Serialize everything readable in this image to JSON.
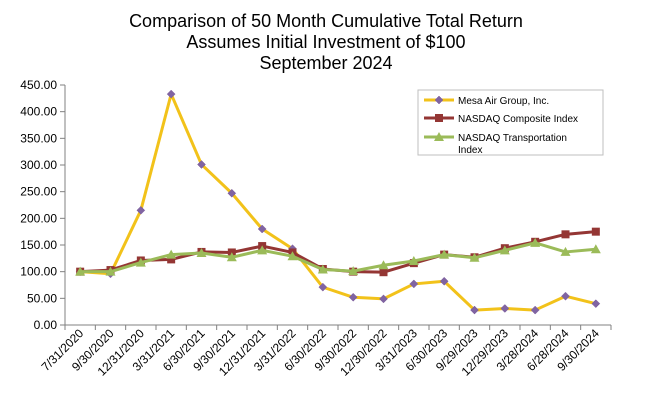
{
  "chart_data": {
    "type": "line",
    "title": [
      "Comparison of 50 Month Cumulative Total Return",
      "Assumes Initial Investment of $100",
      "September 2024"
    ],
    "xlabel": "",
    "ylabel": "",
    "ylim": [
      0,
      450
    ],
    "yticks": [
      "0.00",
      "50.00",
      "100.00",
      "150.00",
      "200.00",
      "250.00",
      "300.00",
      "350.00",
      "400.00",
      "450.00"
    ],
    "categories": [
      "7/31/2020",
      "9/30/2020",
      "12/31/2020",
      "3/31/2021",
      "6/30/2021",
      "9/30/2021",
      "12/31/2021",
      "3/31/2022",
      "6/30/2022",
      "9/30/2022",
      "12/30/2022",
      "3/31/2023",
      "6/30/2023",
      "9/29/2023",
      "12/29/2023",
      "3/28/2024",
      "6/28/2024",
      "9/30/2024"
    ],
    "grid": false,
    "legend_position": "top-right",
    "series": [
      {
        "name": "Mesa Air Group, Inc.",
        "color": "#F2C21A",
        "marker": "diamond",
        "values": [
          100,
          96,
          215,
          433,
          301,
          247,
          180,
          143,
          71,
          52,
          49,
          77,
          82,
          28,
          31,
          28,
          54,
          40
        ]
      },
      {
        "name": "NASDAQ Composite Index",
        "color": "#943634",
        "marker": "square",
        "values": [
          100,
          103,
          121,
          123,
          137,
          136,
          148,
          136,
          105,
          100,
          99,
          116,
          132,
          127,
          144,
          156,
          170,
          175
        ]
      },
      {
        "name": "NASDAQ Transportation Index",
        "color": "#9BBB59",
        "marker": "triangle",
        "values": [
          100,
          100,
          117,
          132,
          135,
          127,
          140,
          129,
          104,
          101,
          112,
          120,
          132,
          126,
          140,
          154,
          137,
          142
        ]
      }
    ]
  }
}
